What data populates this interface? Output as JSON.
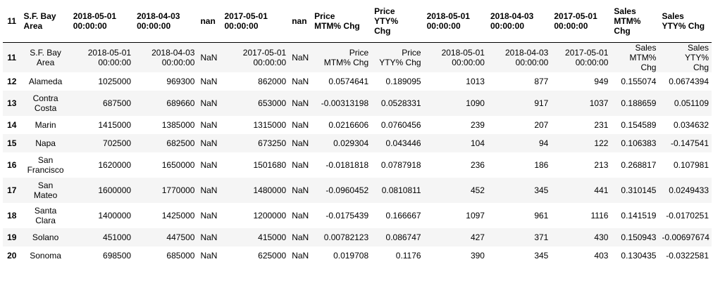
{
  "table": {
    "headers": [
      "11",
      "S.F. Bay\nArea",
      "2018-05-01\n00:00:00",
      "2018-04-03\n00:00:00",
      "nan",
      "2017-05-01\n00:00:00",
      "nan",
      "Price\nMTM% Chg",
      "Price\nYTY%\nChg",
      "2018-05-01\n00:00:00",
      "2018-04-03\n00:00:00",
      "2017-05-01\n00:00:00",
      "Sales\nMTM%\nChg",
      "Sales\nYTY% Chg"
    ],
    "rows": [
      [
        "11",
        "S.F. Bay\nArea",
        "2018-05-01\n00:00:00",
        "2018-04-03\n00:00:00",
        "NaN",
        "2017-05-01\n00:00:00",
        "NaN",
        "Price\nMTM% Chg",
        "Price\nYTY% Chg",
        "2018-05-01\n00:00:00",
        "2018-04-03\n00:00:00",
        "2017-05-01\n00:00:00",
        "Sales\nMTM% Chg",
        "Sales YTY%\nChg"
      ],
      [
        "12",
        "Alameda",
        "1025000",
        "969300",
        "NaN",
        "862000",
        "NaN",
        "0.0574641",
        "0.189095",
        "1013",
        "877",
        "949",
        "0.155074",
        "0.0674394"
      ],
      [
        "13",
        "Contra\nCosta",
        "687500",
        "689660",
        "NaN",
        "653000",
        "NaN",
        "-0.00313198",
        "0.0528331",
        "1090",
        "917",
        "1037",
        "0.188659",
        "0.051109"
      ],
      [
        "14",
        "Marin",
        "1415000",
        "1385000",
        "NaN",
        "1315000",
        "NaN",
        "0.0216606",
        "0.0760456",
        "239",
        "207",
        "231",
        "0.154589",
        "0.034632"
      ],
      [
        "15",
        "Napa",
        "702500",
        "682500",
        "NaN",
        "673250",
        "NaN",
        "0.029304",
        "0.043446",
        "104",
        "94",
        "122",
        "0.106383",
        "-0.147541"
      ],
      [
        "16",
        "San\nFrancisco",
        "1620000",
        "1650000",
        "NaN",
        "1501680",
        "NaN",
        "-0.0181818",
        "0.0787918",
        "236",
        "186",
        "213",
        "0.268817",
        "0.107981"
      ],
      [
        "17",
        "San\nMateo",
        "1600000",
        "1770000",
        "NaN",
        "1480000",
        "NaN",
        "-0.0960452",
        "0.0810811",
        "452",
        "345",
        "441",
        "0.310145",
        "0.0249433"
      ],
      [
        "18",
        "Santa\nClara",
        "1400000",
        "1425000",
        "NaN",
        "1200000",
        "NaN",
        "-0.0175439",
        "0.166667",
        "1097",
        "961",
        "1116",
        "0.141519",
        "-0.0170251"
      ],
      [
        "19",
        "Solano",
        "451000",
        "447500",
        "NaN",
        "415000",
        "NaN",
        "0.00782123",
        "0.086747",
        "427",
        "371",
        "430",
        "0.150943",
        "-0.00697674"
      ],
      [
        "20",
        "Sonoma",
        "698500",
        "685000",
        "NaN",
        "625000",
        "NaN",
        "0.019708",
        "0.1176",
        "390",
        "345",
        "403",
        "0.130435",
        "-0.0322581"
      ]
    ]
  }
}
